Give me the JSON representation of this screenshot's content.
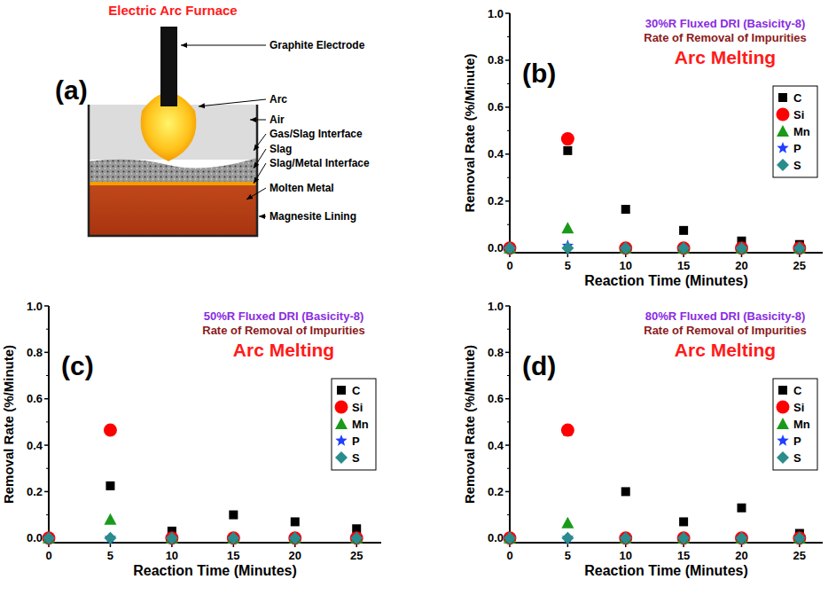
{
  "diagram": {
    "panel_label": "(a)",
    "title": "Electric Arc Furnace",
    "labels": [
      "Graphite Electrode",
      "Arc",
      "Air",
      "Gas/Slag Interface",
      "Slag",
      "Slag/Metal Interface",
      "Molten Metal",
      "Magnesite Lining"
    ]
  },
  "chart_data": [
    {
      "type": "scatter",
      "panel_label": "(b)",
      "title": "30%R Fluxed DRI (Basicity-8)",
      "subtitle": "Rate of Removal of Impurities",
      "annotation": "Arc Melting",
      "xlabel": "Reaction Time (Minutes)",
      "ylabel": "Removal Rate (%/Minute)",
      "x": [
        0,
        5,
        10,
        15,
        20,
        25
      ],
      "xlim": [
        0,
        27
      ],
      "xticks": [
        0,
        5,
        10,
        15,
        20,
        25
      ],
      "ylim": [
        -0.02,
        1.0
      ],
      "yticks": [
        {
          "value": 0,
          "label": "0.0"
        },
        {
          "value": 0.2,
          "label": "0.2"
        },
        {
          "value": 0.4,
          "label": "0.4"
        },
        {
          "value": 0.6,
          "label": "0.6"
        },
        {
          "value": 0.8,
          "label": "0.8"
        },
        {
          "value": 1.0,
          "label": "1.0"
        }
      ],
      "grid": false,
      "legend": "upper right",
      "series": [
        {
          "name": "C",
          "color": "#000000",
          "marker": "square",
          "values": [
            0,
            0.415,
            0.165,
            0.075,
            0.03,
            0.015
          ]
        },
        {
          "name": "Si",
          "color": "#ff0000",
          "marker": "circle",
          "values": [
            0,
            0.465,
            0,
            0,
            0,
            0
          ]
        },
        {
          "name": "Mn",
          "color": "#1a9a1a",
          "marker": "triangle",
          "values": [
            0,
            0.085,
            0,
            0,
            0,
            0
          ]
        },
        {
          "name": "P",
          "color": "#1f3fff",
          "marker": "star",
          "values": [
            0,
            0.01,
            0,
            0,
            0,
            0
          ]
        },
        {
          "name": "S",
          "color": "#2a8c8c",
          "marker": "diamond",
          "values": [
            0,
            0,
            0,
            0,
            0,
            0
          ]
        }
      ]
    },
    {
      "type": "scatter",
      "panel_label": "(c)",
      "title": "50%R Fluxed DRI (Basicity-8)",
      "subtitle": "Rate of Removal of Impurities",
      "annotation": "Arc Melting",
      "xlabel": "Reaction Time (Minutes)",
      "ylabel": "Removal Rate (%/Minute)",
      "x": [
        0,
        5,
        10,
        15,
        20,
        25
      ],
      "xlim": [
        0,
        27
      ],
      "xticks": [
        0,
        5,
        10,
        15,
        20,
        25
      ],
      "ylim": [
        -0.02,
        1.0
      ],
      "yticks": [
        {
          "value": 0,
          "label": "0.0"
        },
        {
          "value": 0.2,
          "label": "0.2"
        },
        {
          "value": 0.4,
          "label": "0.4"
        },
        {
          "value": 0.6,
          "label": "0.6"
        },
        {
          "value": 0.8,
          "label": "0.8"
        },
        {
          "value": 1.0,
          "label": "1.0"
        }
      ],
      "grid": false,
      "legend": "upper right",
      "series": [
        {
          "name": "C",
          "color": "#000000",
          "marker": "square",
          "values": [
            0,
            0.225,
            0.03,
            0.1,
            0.07,
            0.04
          ]
        },
        {
          "name": "Si",
          "color": "#ff0000",
          "marker": "circle",
          "values": [
            0,
            0.465,
            0,
            0,
            0,
            0
          ]
        },
        {
          "name": "Mn",
          "color": "#1a9a1a",
          "marker": "triangle",
          "values": [
            0,
            0.08,
            0,
            0,
            0,
            0
          ]
        },
        {
          "name": "P",
          "color": "#1f3fff",
          "marker": "star",
          "values": [
            0,
            0,
            0,
            0,
            0,
            0
          ]
        },
        {
          "name": "S",
          "color": "#2a8c8c",
          "marker": "diamond",
          "values": [
            0,
            0,
            0,
            0,
            0,
            0
          ]
        }
      ]
    },
    {
      "type": "scatter",
      "panel_label": "(d)",
      "title": "80%R Fluxed DRI (Basicity-8)",
      "subtitle": "Rate of Removal of Impurities",
      "annotation": "Arc Melting",
      "xlabel": "Reaction Time (Minutes)",
      "ylabel": "Removal Rate (%/Minute)",
      "x": [
        0,
        5,
        10,
        15,
        20,
        25
      ],
      "xlim": [
        0,
        27
      ],
      "xticks": [
        0,
        5,
        10,
        15,
        20,
        25
      ],
      "ylim": [
        -0.02,
        1.0
      ],
      "yticks": [
        {
          "value": 0,
          "label": "0.0"
        },
        {
          "value": 0.2,
          "label": "0.2"
        },
        {
          "value": 0.4,
          "label": "0.4"
        },
        {
          "value": 0.6,
          "label": "0.6"
        },
        {
          "value": 0.8,
          "label": "0.8"
        },
        {
          "value": 1.0,
          "label": "1.0"
        }
      ],
      "grid": false,
      "legend": "upper right",
      "series": [
        {
          "name": "C",
          "color": "#000000",
          "marker": "square",
          "values": [
            0,
            0.46,
            0.2,
            0.07,
            0.13,
            0.02
          ]
        },
        {
          "name": "Si",
          "color": "#ff0000",
          "marker": "circle",
          "values": [
            0,
            0.465,
            0,
            0,
            0,
            0
          ]
        },
        {
          "name": "Mn",
          "color": "#1a9a1a",
          "marker": "triangle",
          "values": [
            0,
            0.065,
            0,
            0,
            0,
            0
          ]
        },
        {
          "name": "P",
          "color": "#1f3fff",
          "marker": "star",
          "values": [
            0,
            0,
            0,
            0,
            0,
            0
          ]
        },
        {
          "name": "S",
          "color": "#2a8c8c",
          "marker": "diamond",
          "values": [
            0,
            0,
            0,
            0,
            0,
            0
          ]
        }
      ]
    }
  ]
}
